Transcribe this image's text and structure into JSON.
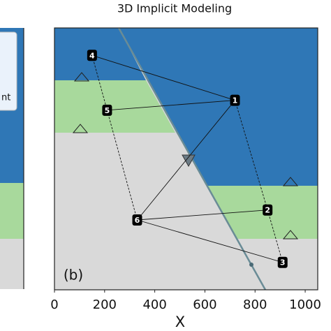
{
  "left_panel": {
    "legend_fragment": "nt"
  },
  "chart_data": {
    "type": "scatter",
    "title": "3D Implicit Modeling",
    "xlabel": "X",
    "panel_label": "(b)",
    "xlim": [
      0,
      1050
    ],
    "ylim": [
      0,
      1050
    ],
    "xticks": [
      0,
      200,
      400,
      600,
      800,
      1000
    ],
    "points": {
      "labels": [
        "1",
        "2",
        "3",
        "4",
        "5",
        "6"
      ],
      "x": [
        720,
        850,
        910,
        150,
        210,
        330
      ],
      "y": [
        760,
        320,
        110,
        940,
        720,
        280
      ]
    }
  }
}
